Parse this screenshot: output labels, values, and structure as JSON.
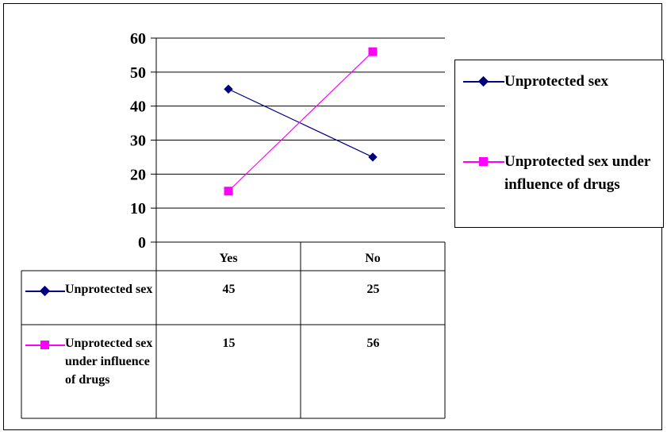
{
  "chart_data": {
    "type": "line",
    "title": "",
    "xlabel": "",
    "ylabel": "",
    "categories": [
      "Yes",
      "No"
    ],
    "ylim": [
      0,
      60
    ],
    "yticks": [
      0,
      10,
      20,
      30,
      40,
      50,
      60
    ],
    "grid": true,
    "legend_position": "right",
    "series": [
      {
        "name": "Unprotected sex",
        "values": [
          45,
          25
        ],
        "color": "#000080",
        "marker": "diamond"
      },
      {
        "name": "Unprotected sex under influence of drugs",
        "values": [
          15,
          56
        ],
        "color": "#ff00ff",
        "marker": "square"
      }
    ],
    "data_table": {
      "row_labels": [
        "Unprotected sex",
        "Unprotected sex under influence of drugs"
      ],
      "values": [
        [
          "45",
          "25"
        ],
        [
          "15",
          "56"
        ]
      ]
    }
  },
  "legend": {
    "items": [
      {
        "label": "Unprotected sex"
      },
      {
        "label": "Unprotected sex under influence of drugs"
      }
    ]
  }
}
